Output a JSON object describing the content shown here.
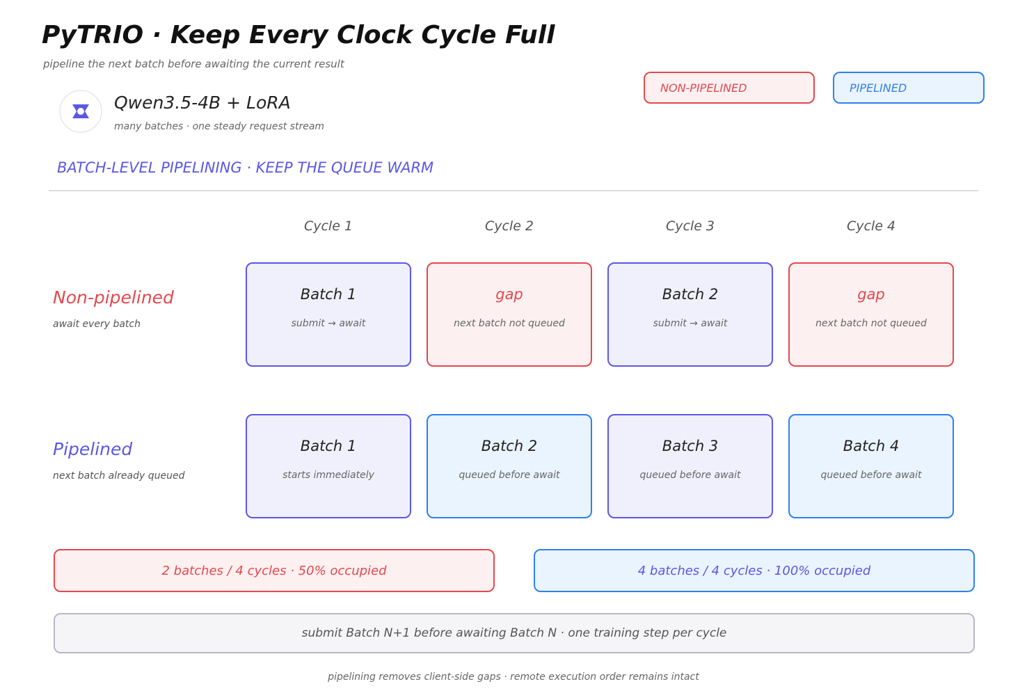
{
  "header": {
    "title": "PyTRIO · Keep Every Clock Cycle Full",
    "subtitle": "pipeline the next batch before awaiting the current result"
  },
  "legend": [
    {
      "text": "NON-PIPELINED",
      "color": "#e5484d",
      "fill": "#fdf0f1"
    },
    {
      "text": "PIPELINED",
      "color": "#2f80ed",
      "fill": "#eaf4fe"
    }
  ],
  "model": {
    "name": "Qwen3.5-4B + LoRA",
    "note": "many batches · one steady request stream"
  },
  "section": "BATCH-LEVEL PIPELINING · KEEP THE QUEUE WARM",
  "cycles": [
    "Cycle 1",
    "Cycle 2",
    "Cycle 3",
    "Cycle 4"
  ],
  "rows": [
    {
      "label": "Non-pipelined",
      "note": "await every batch",
      "color": "#e5484d",
      "cells": [
        {
          "title": "Batch 1",
          "note": "submit → await",
          "color": "#5b57e6",
          "fill": "#f0f0fc"
        },
        {
          "title": "gap",
          "note": "next batch not queued",
          "color": "#e5484d",
          "fill": "#fdf0f1"
        },
        {
          "title": "Batch 2",
          "note": "submit → await",
          "color": "#5b57e6",
          "fill": "#f0f0fc"
        },
        {
          "title": "gap",
          "note": "next batch not queued",
          "color": "#e5484d",
          "fill": "#fdf0f1"
        }
      ]
    },
    {
      "label": "Pipelined",
      "note": "next batch already queued",
      "color": "#5b57e6",
      "cells": [
        {
          "title": "Batch 1",
          "note": "starts immediately",
          "color": "#5b57e6",
          "fill": "#f0f0fc"
        },
        {
          "title": "Batch 2",
          "note": "queued before await",
          "color": "#2f80ed",
          "fill": "#eaf4fe"
        },
        {
          "title": "Batch 3",
          "note": "queued before await",
          "color": "#5b57e6",
          "fill": "#f0f0fc"
        },
        {
          "title": "Batch 4",
          "note": "queued before await",
          "color": "#2f80ed",
          "fill": "#eaf4fe"
        }
      ]
    }
  ],
  "summary": [
    {
      "text": "2 batches / 4 cycles · 50% occupied",
      "color": "#e5484d",
      "fill": "#fdf0f1"
    },
    {
      "text": "4 batches / 4 cycles · 100% occupied",
      "color": "#2f80ed",
      "fill": "#eaf4fe"
    }
  ],
  "rule": "submit Batch N+1 before awaiting Batch N · one training step per cycle",
  "footer": "pipelining removes client-side gaps · remote execution order remains intact"
}
